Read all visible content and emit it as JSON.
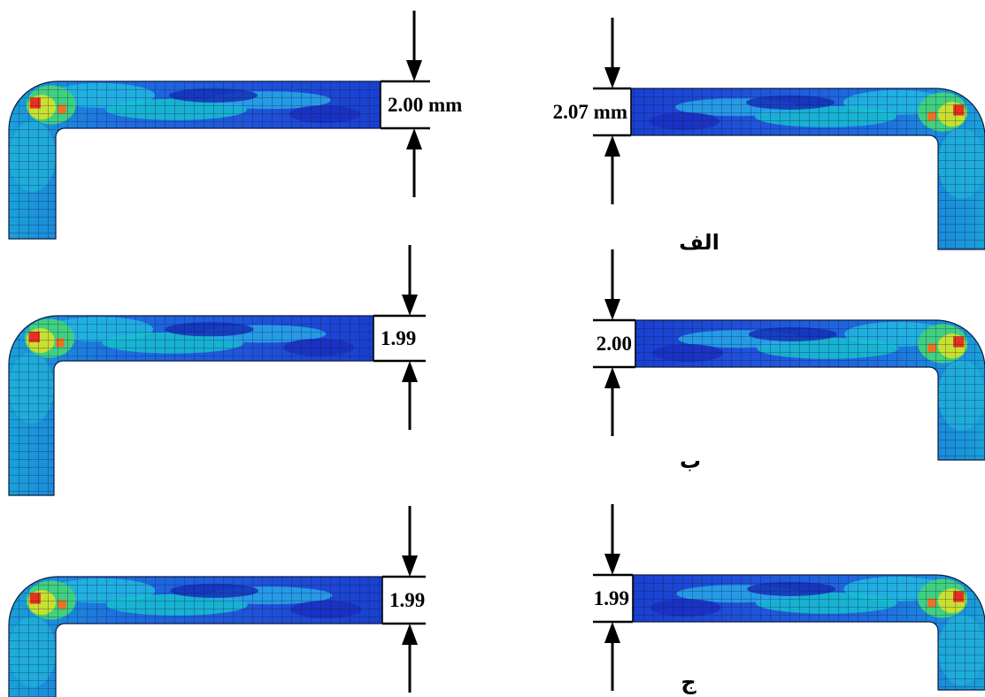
{
  "rows": [
    {
      "label": "الف",
      "left_thickness": "2.00 mm",
      "right_thickness": "2.07 mm"
    },
    {
      "label": "ب",
      "left_thickness": "1.99",
      "right_thickness": "2.00"
    },
    {
      "label": "ج",
      "left_thickness": "1.99",
      "right_thickness": "1.99"
    }
  ]
}
